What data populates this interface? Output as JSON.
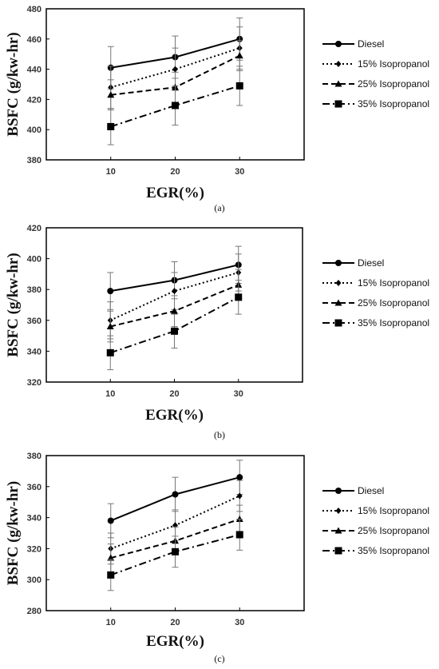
{
  "chart_data": [
    {
      "type": "line",
      "panel_label": "(a)",
      "xlabel": "EGR(%)",
      "ylabel": "BSFC (g/kw-hr)",
      "x": [
        10,
        20,
        30
      ],
      "ylim": [
        380,
        480
      ],
      "yticks": [
        380,
        400,
        420,
        440,
        460,
        480
      ],
      "legend_position": "right",
      "series": [
        {
          "name": "Diesel",
          "values": [
            441,
            448,
            460
          ],
          "errors": [
            14,
            14,
            14
          ],
          "marker": "circle",
          "dash": "solid"
        },
        {
          "name": "15% Isopropanol",
          "values": [
            428,
            440,
            454
          ],
          "errors": [
            14,
            14,
            14
          ],
          "marker": "diamond",
          "dash": "dotted"
        },
        {
          "name": "25% Isopropanol",
          "values": [
            423,
            428,
            449
          ],
          "errors": [
            10,
            10,
            10
          ],
          "marker": "triangle",
          "dash": "dashed"
        },
        {
          "name": "35% Isopropanol",
          "values": [
            402,
            416,
            429
          ],
          "errors": [
            12,
            13,
            13
          ],
          "marker": "square",
          "dash": "dashdot"
        }
      ]
    },
    {
      "type": "line",
      "panel_label": "(b)",
      "xlabel": "EGR(%)",
      "ylabel": "BSFC (g/kw-hr)",
      "x": [
        10,
        20,
        30
      ],
      "ylim": [
        320,
        420
      ],
      "yticks": [
        320,
        340,
        360,
        380,
        400,
        420
      ],
      "legend_position": "right",
      "series": [
        {
          "name": "Diesel",
          "values": [
            379,
            386,
            396
          ],
          "errors": [
            12,
            12,
            12
          ],
          "marker": "circle",
          "dash": "solid"
        },
        {
          "name": "15% Isopropanol",
          "values": [
            360,
            379,
            391
          ],
          "errors": [
            12,
            12,
            12
          ],
          "marker": "diamond",
          "dash": "dotted"
        },
        {
          "name": "25% Isopropanol",
          "values": [
            356,
            366,
            383
          ],
          "errors": [
            10,
            10,
            10
          ],
          "marker": "triangle",
          "dash": "dashed"
        },
        {
          "name": "35% Isopropanol",
          "values": [
            339,
            353,
            375
          ],
          "errors": [
            11,
            11,
            11
          ],
          "marker": "square",
          "dash": "dashdot"
        }
      ]
    },
    {
      "type": "line",
      "panel_label": "(c)",
      "xlabel": "EGR(%)",
      "ylabel": "BSFC (g/kw-hr)",
      "x": [
        10,
        20,
        30
      ],
      "ylim": [
        280,
        380
      ],
      "yticks": [
        280,
        300,
        320,
        340,
        360,
        380
      ],
      "legend_position": "right",
      "series": [
        {
          "name": "Diesel",
          "values": [
            338,
            355,
            366
          ],
          "errors": [
            11,
            11,
            11
          ],
          "marker": "circle",
          "dash": "solid"
        },
        {
          "name": "15% Isopropanol",
          "values": [
            320,
            335,
            354
          ],
          "errors": [
            10,
            10,
            10
          ],
          "marker": "diamond",
          "dash": "dotted"
        },
        {
          "name": "25% Isopropanol",
          "values": [
            314,
            325,
            339
          ],
          "errors": [
            9,
            9,
            9
          ],
          "marker": "triangle",
          "dash": "dashed"
        },
        {
          "name": "35% Isopropanol",
          "values": [
            303,
            318,
            329
          ],
          "errors": [
            10,
            10,
            10
          ],
          "marker": "square",
          "dash": "dashdot"
        }
      ]
    }
  ]
}
